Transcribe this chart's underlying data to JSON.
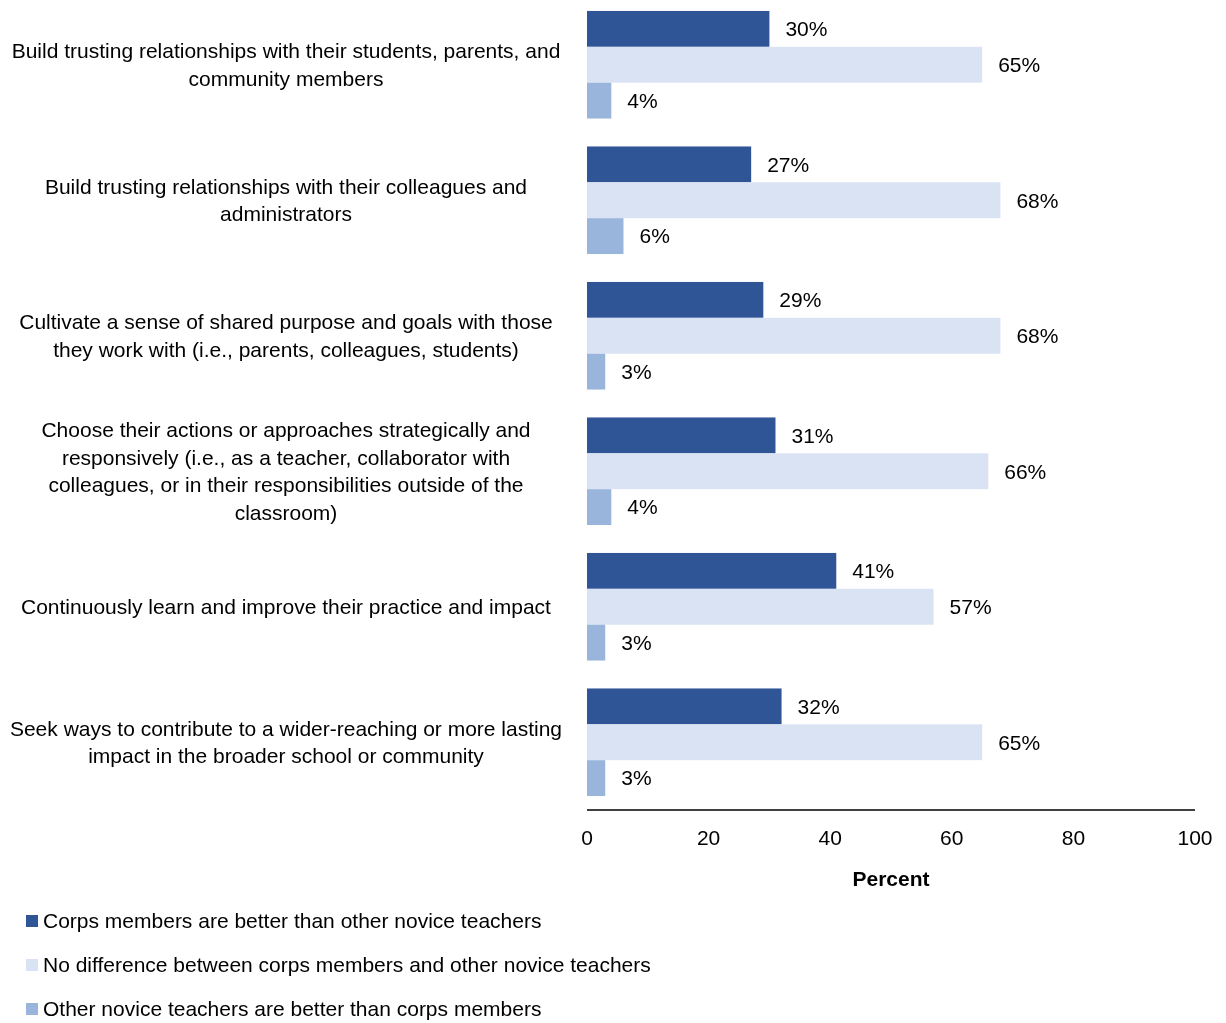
{
  "chart_data": {
    "type": "bar",
    "orientation": "horizontal",
    "xlabel": "Percent",
    "xlim": [
      0,
      100
    ],
    "xticks": [
      0,
      20,
      40,
      60,
      80,
      100
    ],
    "grid": false,
    "legend": "bottom left",
    "categories": [
      "Build trusting relationships with their students, parents, and community members",
      "Build trusting relationships with their colleagues and administrators",
      "Cultivate a sense of shared purpose and goals with those they work with (i.e., parents, colleagues, students)",
      "Choose their actions or approaches strategically and responsively (i.e., as a teacher, collaborator with colleagues, or in their responsibilities outside of the classroom)",
      "Continuously learn and improve their practice and impact",
      "Seek ways to contribute to a wider-reaching or more lasting impact in the broader school or community"
    ],
    "series": [
      {
        "name": "Corps members are better than other novice teachers",
        "color": "#2f5597",
        "values": [
          30,
          27,
          29,
          31,
          41,
          32
        ],
        "value_labels": [
          "30%",
          "27%",
          "29%",
          "31%",
          "41%",
          "32%"
        ]
      },
      {
        "name": "No difference between corps members and other novice teachers",
        "color": "#dae3f3",
        "values": [
          65,
          68,
          68,
          66,
          57,
          65
        ],
        "value_labels": [
          "65%",
          "68%",
          "68%",
          "66%",
          "57%",
          "65%"
        ]
      },
      {
        "name": "Other novice teachers are better than corps members",
        "color": "#9ab5db",
        "values": [
          4,
          6,
          3,
          4,
          3,
          3
        ],
        "value_labels": [
          "4%",
          "6%",
          "3%",
          "4%",
          "3%",
          "3%"
        ]
      }
    ]
  }
}
